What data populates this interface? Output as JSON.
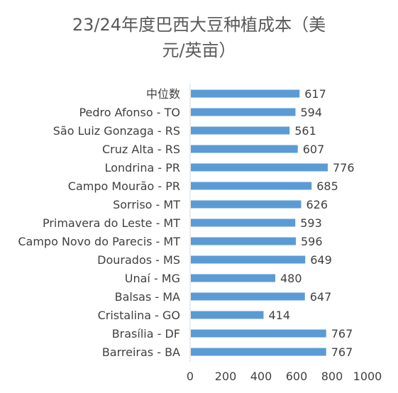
{
  "chart_data": {
    "type": "bar",
    "orientation": "horizontal",
    "title_line_1": "23/24年度巴西大豆种植成本（美",
    "title_line_2": "元/英亩）",
    "categories": [
      "中位数",
      "Pedro Afonso - TO",
      "São Luiz Gonzaga - RS",
      "Cruz Alta - RS",
      "Londrina - PR",
      "Campo Mourão - PR",
      "Sorriso - MT",
      "Primavera do Leste - MT",
      "Campo Novo do Parecis - MT",
      "Dourados - MS",
      "Unaí - MG",
      "Balsas - MA",
      "Cristalina - GO",
      "Brasília - DF",
      "Barreiras - BA"
    ],
    "values": [
      617,
      594,
      561,
      607,
      776,
      685,
      626,
      593,
      596,
      649,
      480,
      647,
      414,
      767,
      767
    ],
    "xlim": [
      0,
      1000
    ],
    "x_ticks": [
      0,
      200,
      400,
      600,
      800,
      1000
    ],
    "grid": false,
    "legend": "none",
    "bar_color": "#5b9bd5",
    "axis_color": "#d9d9d9",
    "text_color": "#404040"
  }
}
